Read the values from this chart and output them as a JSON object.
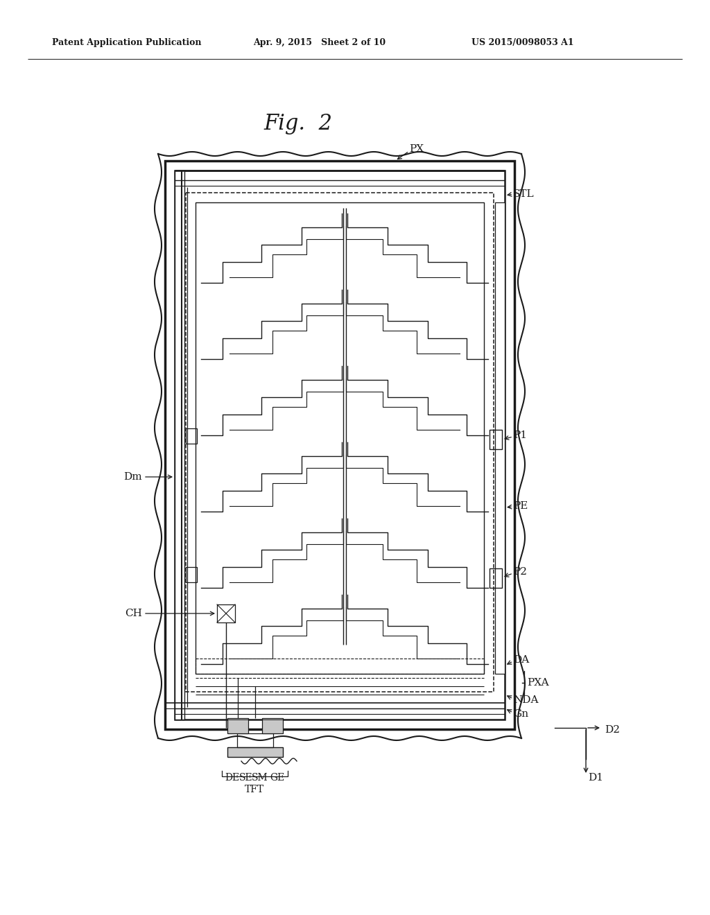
{
  "title": "Fig.  2",
  "header_left": "Patent Application Publication",
  "header_mid": "Apr. 9, 2015   Sheet 2 of 10",
  "header_right": "US 2015/0098053 A1",
  "bg_color": "#ffffff",
  "line_color": "#1a1a1a"
}
